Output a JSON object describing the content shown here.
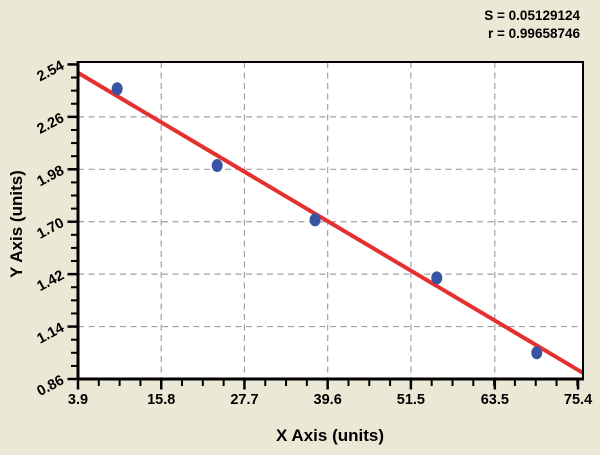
{
  "chart_data": {
    "type": "scatter",
    "title": "",
    "xlabel": "X Axis (units)",
    "ylabel": "Y Axis (units)",
    "stats": {
      "s_label": "S = 0.05129124",
      "r_label": "r = 0.99658746",
      "s_value": 0.05129124,
      "r_value": 0.99658746
    },
    "points": [
      {
        "x": 9.5,
        "y": 2.41
      },
      {
        "x": 23.8,
        "y": 2.0
      },
      {
        "x": 37.8,
        "y": 1.71
      },
      {
        "x": 55.2,
        "y": 1.4
      },
      {
        "x": 69.5,
        "y": 1.0
      }
    ],
    "fit_line": {
      "slope": -0.0222,
      "intercept": 2.582
    },
    "x_ticks": [
      3.9,
      15.8,
      27.7,
      39.6,
      51.5,
      63.5,
      75.4
    ],
    "x_tick_labels": [
      "3.9",
      "15.8",
      "27.7",
      "39.6",
      "51.5",
      "63.5",
      "75.4"
    ],
    "y_ticks": [
      0.86,
      1.14,
      1.42,
      1.7,
      1.98,
      2.26,
      2.54
    ],
    "y_tick_labels": [
      "0.86",
      "1.14",
      "1.42",
      "1.70",
      "1.98",
      "2.26",
      "2.54"
    ],
    "x_minor_step": 2.975,
    "y_minor_step": 0.07,
    "xlim": [
      3.9,
      76.11
    ],
    "ylim": [
      0.86,
      2.553
    ],
    "grid": {
      "style": "dashed",
      "on_major_ticks": true,
      "skip_first_and_last": true
    },
    "legend": "none",
    "colors": {
      "background": "#ebe8d6",
      "plot_background": "#ffffff",
      "axis": "#000000",
      "grid": "#a0a0a0",
      "point": "#3653a4",
      "line": "#e53030",
      "text": "#000000"
    }
  }
}
